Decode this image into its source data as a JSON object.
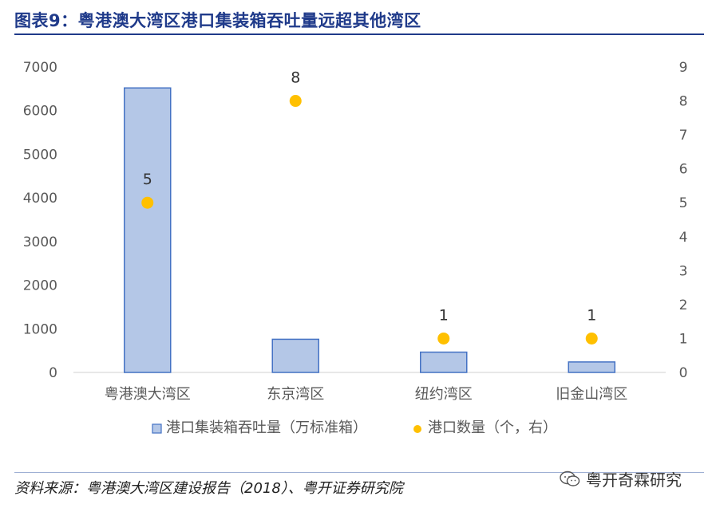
{
  "title": "图表9：粤港澳大湾区港口集装箱吞吐量远超其他湾区",
  "source": "资料来源：粤港澳大湾区建设报告（2018）、粤开证券研究院",
  "watermark": "粤开奇霖研究",
  "colors": {
    "bar_fill": "#b4c7e7",
    "bar_stroke": "#4472c4",
    "dot": "#ffc000",
    "title": "#1f3a8a",
    "axis_text": "#595959"
  },
  "chart_data": {
    "type": "bar",
    "categories": [
      "粤港澳大湾区",
      "东京湾区",
      "纽约湾区",
      "旧金山湾区"
    ],
    "series": [
      {
        "name": "港口集装箱吞吐量（万标准箱）",
        "type": "bar",
        "axis": "left",
        "values": [
          6520,
          760,
          465,
          240
        ]
      },
      {
        "name": "港口数量（个，右）",
        "type": "scatter",
        "axis": "right",
        "values": [
          5,
          8,
          1,
          1
        ],
        "labels": [
          "5",
          "8",
          "1",
          "1"
        ]
      }
    ],
    "y_left": {
      "min": 0,
      "max": 7000,
      "ticks": [
        "0",
        "1000",
        "2000",
        "3000",
        "4000",
        "5000",
        "6000",
        "7000"
      ]
    },
    "y_right": {
      "min": 0,
      "max": 9,
      "ticks": [
        "0",
        "1",
        "2",
        "3",
        "4",
        "5",
        "6",
        "7",
        "8",
        "9"
      ]
    },
    "legend_position": "bottom",
    "grid": false
  }
}
